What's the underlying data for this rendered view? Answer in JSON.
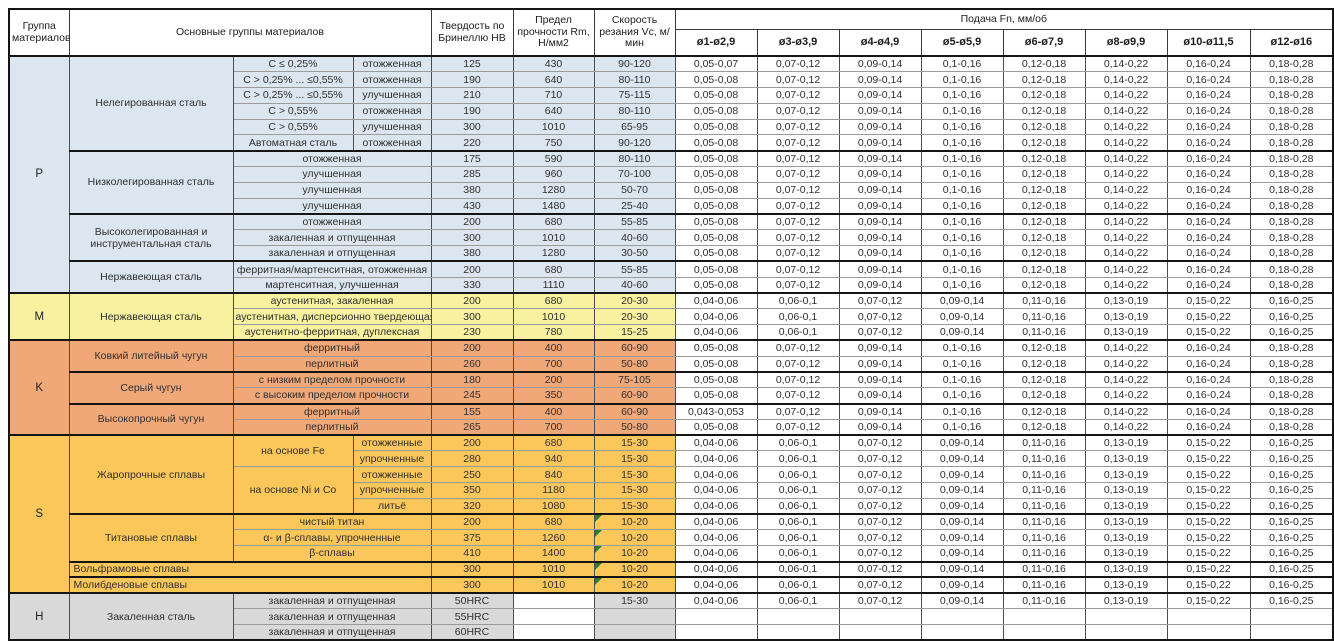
{
  "colors": {
    "p": "#dce6f1",
    "m": "#f8f1a0",
    "k": "#f0a878",
    "s": "#fbc75b",
    "h": "#d9d9d9",
    "flag": "#2f7d32"
  },
  "header": {
    "col_group": "Группа материалов",
    "col_main": "Основные группы материалов",
    "col_hardness": "Твердость по Бринеллю HB",
    "col_strength": "Предел прочности Rm, Н/мм2",
    "col_speed": "Скорость резания Vc, м/мин",
    "feed_title": "Подача Fn, мм/об",
    "feed_cols": [
      "ø1-ø2,9",
      "ø3-ø3,9",
      "ø4-ø4,9",
      "ø5-ø5,9",
      "ø6-ø7,9",
      "ø8-ø9,9",
      "ø10-ø11,5",
      "ø12-ø16"
    ]
  },
  "feed_patterns": {
    "A": [
      "0,05-0,07",
      "0,07-0,12",
      "0,09-0,14",
      "0,1-0,16",
      "0,12-0,18",
      "0,14-0,22",
      "0,16-0,24",
      "0,18-0,28"
    ],
    "B": [
      "0,05-0,08",
      "0,07-0,12",
      "0,09-0,14",
      "0,1-0,16",
      "0,12-0,18",
      "0,14-0,22",
      "0,16-0,24",
      "0,18-0,28"
    ],
    "C": [
      "0,04-0,06",
      "0,06-0,1",
      "0,07-0,12",
      "0,09-0,14",
      "0,11-0,16",
      "0,13-0,19",
      "0,15-0,22",
      "0,16-0,25"
    ],
    "D": [
      "0,043-0,053",
      "0,07-0,12",
      "0,09-0,14",
      "0,1-0,16",
      "0,12-0,18",
      "0,14-0,22",
      "0,16-0,24",
      "0,18-0,28"
    ],
    "E": [
      "",
      "",
      "",
      "",
      "",
      "",
      "",
      ""
    ]
  },
  "rows": [
    {
      "cells": [
        {
          "t": "P",
          "rs": 15,
          "cl": "p gl",
          "n": "group-letter-p"
        },
        {
          "t": "Нелегированная сталь",
          "rs": 6,
          "cl": "p",
          "n": "material-family"
        },
        {
          "t": "C ≤ 0,25%",
          "cl": "p"
        },
        {
          "t": "отожженная",
          "cl": "p"
        },
        {
          "t": "125",
          "cl": "p"
        },
        {
          "t": "430",
          "cl": "p"
        },
        {
          "t": "90-120",
          "cl": "p"
        }
      ],
      "feeds": "A"
    },
    {
      "cells": [
        {
          "t": "C > 0,25% ... ≤0,55%",
          "cl": "p"
        },
        {
          "t": "отожженная",
          "cl": "p"
        },
        {
          "t": "190",
          "cl": "p"
        },
        {
          "t": "640",
          "cl": "p"
        },
        {
          "t": "80-110",
          "cl": "p"
        }
      ],
      "feeds": "B"
    },
    {
      "cells": [
        {
          "t": "C > 0,25% ... ≤0,55%",
          "cl": "p"
        },
        {
          "t": "улучшенная",
          "cl": "p"
        },
        {
          "t": "210",
          "cl": "p"
        },
        {
          "t": "710",
          "cl": "p"
        },
        {
          "t": "75-115",
          "cl": "p"
        }
      ],
      "feeds": "B"
    },
    {
      "cells": [
        {
          "t": "C > 0,55%",
          "cl": "p"
        },
        {
          "t": "отожженная",
          "cl": "p"
        },
        {
          "t": "190",
          "cl": "p"
        },
        {
          "t": "640",
          "cl": "p"
        },
        {
          "t": "80-110",
          "cl": "p"
        }
      ],
      "feeds": "B"
    },
    {
      "cells": [
        {
          "t": "C > 0,55%",
          "cl": "p"
        },
        {
          "t": "улучшенная",
          "cl": "p"
        },
        {
          "t": "300",
          "cl": "p"
        },
        {
          "t": "1010",
          "cl": "p"
        },
        {
          "t": "65-95",
          "cl": "p"
        }
      ],
      "feeds": "B"
    },
    {
      "cells": [
        {
          "t": "Автоматная сталь",
          "cl": "p"
        },
        {
          "t": "отожженная",
          "cl": "p"
        },
        {
          "t": "220",
          "cl": "p"
        },
        {
          "t": "750",
          "cl": "p"
        },
        {
          "t": "90-120",
          "cl": "p"
        }
      ],
      "feeds": "B"
    },
    {
      "bt": true,
      "cells": [
        {
          "t": "Низколегированная сталь",
          "rs": 4,
          "cl": "p",
          "n": "material-family"
        },
        {
          "t": "отожженная",
          "cs": 2,
          "cl": "p"
        },
        {
          "t": "175",
          "cl": "p"
        },
        {
          "t": "590",
          "cl": "p"
        },
        {
          "t": "80-110",
          "cl": "p"
        }
      ],
      "feeds": "B"
    },
    {
      "cells": [
        {
          "t": "улучшенная",
          "cs": 2,
          "cl": "p"
        },
        {
          "t": "285",
          "cl": "p"
        },
        {
          "t": "960",
          "cl": "p"
        },
        {
          "t": "70-100",
          "cl": "p"
        }
      ],
      "feeds": "B"
    },
    {
      "cells": [
        {
          "t": "улучшенная",
          "cs": 2,
          "cl": "p"
        },
        {
          "t": "380",
          "cl": "p"
        },
        {
          "t": "1280",
          "cl": "p"
        },
        {
          "t": "50-70",
          "cl": "p"
        }
      ],
      "feeds": "B"
    },
    {
      "cells": [
        {
          "t": "улучшенная",
          "cs": 2,
          "cl": "p"
        },
        {
          "t": "430",
          "cl": "p"
        },
        {
          "t": "1480",
          "cl": "p"
        },
        {
          "t": "25-40",
          "cl": "p"
        }
      ],
      "feeds": "B"
    },
    {
      "bt": true,
      "cells": [
        {
          "t": "Высоколегированная и инструментальная сталь",
          "rs": 3,
          "cl": "p wr",
          "n": "material-family"
        },
        {
          "t": "отожженная",
          "cs": 2,
          "cl": "p"
        },
        {
          "t": "200",
          "cl": "p"
        },
        {
          "t": "680",
          "cl": "p"
        },
        {
          "t": "55-85",
          "cl": "p"
        }
      ],
      "feeds": "B"
    },
    {
      "cells": [
        {
          "t": "закаленная и отпущенная",
          "cs": 2,
          "cl": "p"
        },
        {
          "t": "300",
          "cl": "p"
        },
        {
          "t": "1010",
          "cl": "p"
        },
        {
          "t": "40-60",
          "cl": "p"
        }
      ],
      "feeds": "B"
    },
    {
      "cells": [
        {
          "t": "закаленная и отпущенная",
          "cs": 2,
          "cl": "p"
        },
        {
          "t": "380",
          "cl": "p"
        },
        {
          "t": "1280",
          "cl": "p"
        },
        {
          "t": "30-50",
          "cl": "p"
        }
      ],
      "feeds": "B"
    },
    {
      "bt": true,
      "cells": [
        {
          "t": "Нержавеющая сталь",
          "rs": 2,
          "cl": "p",
          "n": "material-family"
        },
        {
          "t": "ферритная/мартенситная, отожженная",
          "cs": 2,
          "cl": "p"
        },
        {
          "t": "200",
          "cl": "p"
        },
        {
          "t": "680",
          "cl": "p"
        },
        {
          "t": "55-85",
          "cl": "p"
        }
      ],
      "feeds": "B"
    },
    {
      "cells": [
        {
          "t": "мартенситная, улучшенная",
          "cs": 2,
          "cl": "p"
        },
        {
          "t": "330",
          "cl": "p"
        },
        {
          "t": "1110",
          "cl": "p"
        },
        {
          "t": "40-60",
          "cl": "p"
        }
      ],
      "feeds": "B"
    },
    {
      "bt": true,
      "cells": [
        {
          "t": "M",
          "rs": 3,
          "cl": "m gl",
          "n": "group-letter-m"
        },
        {
          "t": "Нержавеющая сталь",
          "rs": 3,
          "cl": "m",
          "n": "material-family"
        },
        {
          "t": "аустенитная, закаленная",
          "cs": 2,
          "cl": "m"
        },
        {
          "t": "200",
          "cl": "m"
        },
        {
          "t": "680",
          "cl": "m"
        },
        {
          "t": "20-30",
          "cl": "m"
        }
      ],
      "feeds": "C"
    },
    {
      "cells": [
        {
          "t": "аустенитная, дисперсионно твердеющая",
          "cs": 2,
          "cl": "m"
        },
        {
          "t": "300",
          "cl": "m"
        },
        {
          "t": "1010",
          "cl": "m"
        },
        {
          "t": "20-30",
          "cl": "m"
        }
      ],
      "feeds": "C"
    },
    {
      "cells": [
        {
          "t": "аустенитно-ферритная, дуплексная",
          "cs": 2,
          "cl": "m"
        },
        {
          "t": "230",
          "cl": "m"
        },
        {
          "t": "780",
          "cl": "m"
        },
        {
          "t": "15-25",
          "cl": "m"
        }
      ],
      "feeds": "C"
    },
    {
      "bt": true,
      "cells": [
        {
          "t": "K",
          "rs": 6,
          "cl": "k gl",
          "n": "group-letter-k"
        },
        {
          "t": "Ковкий литейный чугун",
          "rs": 2,
          "cl": "k",
          "n": "material-family"
        },
        {
          "t": "ферритный",
          "cs": 2,
          "cl": "k"
        },
        {
          "t": "200",
          "cl": "k"
        },
        {
          "t": "400",
          "cl": "k"
        },
        {
          "t": "60-90",
          "cl": "k"
        }
      ],
      "feeds": "B"
    },
    {
      "cells": [
        {
          "t": "перлитный",
          "cs": 2,
          "cl": "k"
        },
        {
          "t": "260",
          "cl": "k"
        },
        {
          "t": "700",
          "cl": "k"
        },
        {
          "t": "50-80",
          "cl": "k"
        }
      ],
      "feeds": "B"
    },
    {
      "bt": true,
      "cells": [
        {
          "t": "Серый чугун",
          "rs": 2,
          "cl": "k",
          "n": "material-family"
        },
        {
          "t": "с низким пределом прочности",
          "cs": 2,
          "cl": "k"
        },
        {
          "t": "180",
          "cl": "k"
        },
        {
          "t": "200",
          "cl": "k"
        },
        {
          "t": "75-105",
          "cl": "k"
        }
      ],
      "feeds": "B"
    },
    {
      "cells": [
        {
          "t": "с высоким пределом прочности",
          "cs": 2,
          "cl": "k"
        },
        {
          "t": "245",
          "cl": "k"
        },
        {
          "t": "350",
          "cl": "k"
        },
        {
          "t": "60-90",
          "cl": "k"
        }
      ],
      "feeds": "B"
    },
    {
      "bt": true,
      "cells": [
        {
          "t": "Высокопрочный чугун",
          "rs": 2,
          "cl": "k",
          "n": "material-family"
        },
        {
          "t": "ферритный",
          "cs": 2,
          "cl": "k"
        },
        {
          "t": "155",
          "cl": "k"
        },
        {
          "t": "400",
          "cl": "k"
        },
        {
          "t": "60-90",
          "cl": "k"
        }
      ],
      "feeds": "D"
    },
    {
      "cells": [
        {
          "t": "перлитный",
          "cs": 2,
          "cl": "k"
        },
        {
          "t": "265",
          "cl": "k"
        },
        {
          "t": "700",
          "cl": "k"
        },
        {
          "t": "50-80",
          "cl": "k"
        }
      ],
      "feeds": "B"
    },
    {
      "bt": true,
      "cells": [
        {
          "t": "S",
          "rs": 10,
          "cl": "s gl",
          "n": "group-letter-s"
        },
        {
          "t": "Жаропрочные сплавы",
          "rs": 5,
          "cl": "s",
          "n": "material-family"
        },
        {
          "t": "на основе Fe",
          "rs": 2,
          "cl": "s"
        },
        {
          "t": "отожженные",
          "cl": "s"
        },
        {
          "t": "200",
          "cl": "s"
        },
        {
          "t": "680",
          "cl": "s"
        },
        {
          "t": "15-30",
          "cl": "s"
        }
      ],
      "feeds": "C"
    },
    {
      "cells": [
        {
          "t": "упрочненные",
          "cl": "s"
        },
        {
          "t": "280",
          "cl": "s"
        },
        {
          "t": "940",
          "cl": "s"
        },
        {
          "t": "15-30",
          "cl": "s"
        }
      ],
      "feeds": "C"
    },
    {
      "cells": [
        {
          "t": "на основе Ni и Co",
          "rs": 3,
          "cl": "s"
        },
        {
          "t": "отожженные",
          "cl": "s"
        },
        {
          "t": "250",
          "cl": "s"
        },
        {
          "t": "840",
          "cl": "s"
        },
        {
          "t": "15-30",
          "cl": "s"
        }
      ],
      "feeds": "C"
    },
    {
      "cells": [
        {
          "t": "упрочненные",
          "cl": "s"
        },
        {
          "t": "350",
          "cl": "s"
        },
        {
          "t": "1180",
          "cl": "s"
        },
        {
          "t": "15-30",
          "cl": "s"
        }
      ],
      "feeds": "C"
    },
    {
      "cells": [
        {
          "t": "литьё",
          "cl": "s"
        },
        {
          "t": "320",
          "cl": "s"
        },
        {
          "t": "1080",
          "cl": "s"
        },
        {
          "t": "15-30",
          "cl": "s"
        }
      ],
      "feeds": "C"
    },
    {
      "bt": true,
      "cells": [
        {
          "t": "Титановые сплавы",
          "rs": 3,
          "cl": "s",
          "n": "material-family"
        },
        {
          "t": "чистый титан",
          "cs": 2,
          "cl": "s"
        },
        {
          "t": "200",
          "cl": "s"
        },
        {
          "t": "680",
          "cl": "s"
        },
        {
          "t": "10-20",
          "cl": "s gt",
          "n": "cutting-speed-flagged"
        }
      ],
      "feeds": "C"
    },
    {
      "cells": [
        {
          "t": "α- и β-сплавы, упрочненные",
          "cs": 2,
          "cl": "s"
        },
        {
          "t": "375",
          "cl": "s"
        },
        {
          "t": "1260",
          "cl": "s"
        },
        {
          "t": "10-20",
          "cl": "s gt",
          "n": "cutting-speed-flagged"
        }
      ],
      "feeds": "C"
    },
    {
      "cells": [
        {
          "t": "β-сплавы",
          "cs": 2,
          "cl": "s"
        },
        {
          "t": "410",
          "cl": "s"
        },
        {
          "t": "1400",
          "cl": "s"
        },
        {
          "t": "10-20",
          "cl": "s gt",
          "n": "cutting-speed-flagged"
        }
      ],
      "feeds": "C"
    },
    {
      "bt": true,
      "cells": [
        {
          "t": "Вольфрамовые сплавы",
          "cs": 3,
          "cl": "s left",
          "n": "material-family"
        },
        {
          "t": "300",
          "cl": "s"
        },
        {
          "t": "1010",
          "cl": "s"
        },
        {
          "t": "10-20",
          "cl": "s gt",
          "n": "cutting-speed-flagged"
        }
      ],
      "feeds": "C"
    },
    {
      "bt": true,
      "cells": [
        {
          "t": "Молибденовые сплавы",
          "cs": 3,
          "cl": "s left",
          "n": "material-family"
        },
        {
          "t": "300",
          "cl": "s"
        },
        {
          "t": "1010",
          "cl": "s"
        },
        {
          "t": "10-20",
          "cl": "s gt",
          "n": "cutting-speed-flagged"
        }
      ],
      "feeds": "C"
    },
    {
      "bt": true,
      "cells": [
        {
          "t": "H",
          "rs": 3,
          "cl": "h gl",
          "n": "group-letter-h"
        },
        {
          "t": "Закаленная сталь",
          "rs": 3,
          "cl": "h",
          "n": "material-family"
        },
        {
          "t": "закаленная и отпущенная",
          "cs": 2,
          "cl": "h"
        },
        {
          "t": "50HRC",
          "cl": "h"
        },
        {
          "t": "",
          "cl": "w"
        },
        {
          "t": "15-30",
          "cl": "h"
        }
      ],
      "feeds": "C"
    },
    {
      "cells": [
        {
          "t": "закаленная и отпущенная",
          "cs": 2,
          "cl": "h"
        },
        {
          "t": "55HRC",
          "cl": "h"
        },
        {
          "t": "",
          "cl": "w"
        },
        {
          "t": "",
          "cl": "h"
        }
      ],
      "feeds": "E"
    },
    {
      "cells": [
        {
          "t": "закаленная и отпущенная",
          "cs": 2,
          "cl": "h"
        },
        {
          "t": "60HRC",
          "cl": "h"
        },
        {
          "t": "",
          "cl": "w"
        },
        {
          "t": "",
          "cl": "h"
        }
      ],
      "feeds": "E"
    }
  ]
}
